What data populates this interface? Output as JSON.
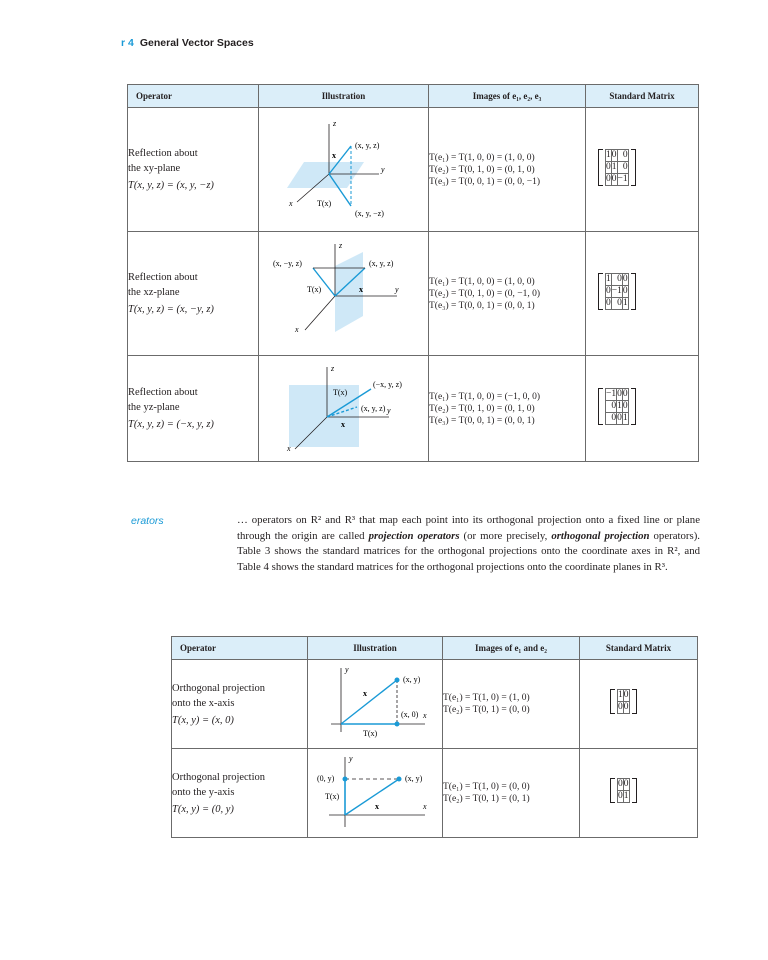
{
  "header": {
    "chapter_label": "r 4",
    "title": "General Vector Spaces"
  },
  "table2": {
    "columns": [
      "Operator",
      "Illustration",
      "Images of e₁, e₂, e₃",
      "Standard Matrix"
    ],
    "rows": [
      {
        "name_line1": "Reflection about",
        "name_line2": "the xy-plane",
        "formula": "T(x, y, z) = (x, y, −z)",
        "images": [
          "T(e₁) = T(1, 0, 0) = (1, 0, 0)",
          "T(e₂) = T(0, 1, 0) = (0, 1, 0)",
          "T(e₃) = T(0, 0, 1) = (0, 0, −1)"
        ],
        "matrix": [
          [
            "1",
            "0",
            "0"
          ],
          [
            "0",
            "1",
            "0"
          ],
          [
            "0",
            "0",
            "−1"
          ]
        ],
        "illu": {
          "p": "(x, y, z)",
          "tp": "(x, y, −z)",
          "x": "x",
          "tx": "T(x)",
          "ax": "x",
          "ay": "y",
          "az": "z"
        }
      },
      {
        "name_line1": "Reflection about",
        "name_line2": "the xz-plane",
        "formula": "T(x, y, z) = (x, −y, z)",
        "images": [
          "T(e₁) = T(1, 0, 0) = (1, 0, 0)",
          "T(e₂) = T(0, 1, 0) = (0, −1, 0)",
          "T(e₃) = T(0, 0, 1) = (0, 0, 1)"
        ],
        "matrix": [
          [
            "1",
            "0",
            "0"
          ],
          [
            "0",
            "−1",
            "0"
          ],
          [
            "0",
            "0",
            "1"
          ]
        ],
        "illu": {
          "p": "(x, y, z)",
          "tp": "(x, −y, z)",
          "x": "x",
          "tx": "T(x)",
          "ax": "x",
          "ay": "y",
          "az": "z"
        }
      },
      {
        "name_line1": "Reflection about",
        "name_line2": "the yz-plane",
        "formula": "T(x, y, z) = (−x, y, z)",
        "images": [
          "T(e₁) = T(1, 0, 0) = (−1, 0, 0)",
          "T(e₂) = T(0, 1, 0) = (0, 1, 0)",
          "T(e₃) = T(0, 0, 1) = (0, 0, 1)"
        ],
        "matrix": [
          [
            "−1",
            "0",
            "0"
          ],
          [
            "0",
            "1",
            "0"
          ],
          [
            "0",
            "0",
            "1"
          ]
        ],
        "illu": {
          "p": "(x, y, z)",
          "tp": "(−x, y, z)",
          "x": "x",
          "tx": "T(x)",
          "ax": "x",
          "ay": "y",
          "az": "z"
        }
      }
    ]
  },
  "side_heading": "erators",
  "paragraph": {
    "line1": "… operators on R² and R³ that map each point into its orthogonal projection onto a fixed line or plane through the origin are called ",
    "term1": "projection operators",
    "line2": " (or more precisely, ",
    "term2": "orthogonal projection",
    "line3": " operators). Table 3 shows the standard matrices for the orthogonal projections onto the coordinate axes in R², and Table 4 shows the standard matrices for the orthogonal projections onto the coordinate planes in R³."
  },
  "table6": {
    "columns": [
      "Operator",
      "Illustration",
      "Images of e₁ and e₂",
      "Standard Matrix"
    ],
    "rows": [
      {
        "name_line1": "Orthogonal projection",
        "name_line2": "onto the x-axis",
        "formula": "T(x, y) = (x, 0)",
        "images": [
          "T(e₁) = T(1, 0) = (1, 0)",
          "T(e₂) = T(0, 1) = (0, 0)"
        ],
        "matrix": [
          [
            "1",
            "0"
          ],
          [
            "0",
            "0"
          ]
        ],
        "illu": {
          "p": "(x, y)",
          "tp": "(x, 0)",
          "x": "x",
          "tx": "T(x)",
          "ax": "x",
          "ay": "y"
        }
      },
      {
        "name_line1": "Orthogonal projection",
        "name_line2": "onto the y-axis",
        "formula": "T(x, y) = (0, y)",
        "images": [
          "T(e₁) = T(1, 0) = (0, 0)",
          "T(e₂) = T(0, 1) = (0, 1)"
        ],
        "matrix": [
          [
            "0",
            "0"
          ],
          [
            "0",
            "1"
          ]
        ],
        "illu": {
          "p": "(x, y)",
          "tp": "(0, y)",
          "x": "x",
          "tx": "T(x)",
          "ax": "x",
          "ay": "y"
        }
      }
    ]
  },
  "colors": {
    "accent_blue": "#1a9ad6",
    "header_fill": "#dbeef9",
    "plane_fill": "#cfe8f7"
  }
}
